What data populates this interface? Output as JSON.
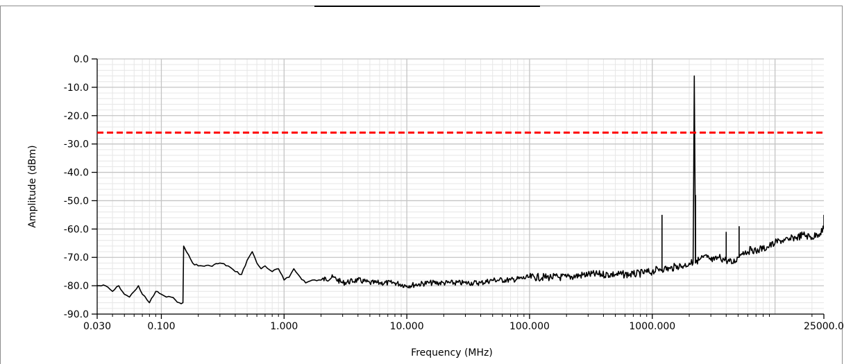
{
  "chart_data": {
    "type": "line",
    "title": "",
    "xlabel": "Frequency (MHz)",
    "ylabel": "Amplitude (dBm)",
    "x_scale": "log",
    "xlim": [
      0.03,
      25000
    ],
    "ylim": [
      -90,
      0
    ],
    "grid": true,
    "x_ticks": [
      0.03,
      0.1,
      1,
      10,
      100,
      1000,
      25000
    ],
    "x_tick_labels": [
      "0.030",
      "0.100",
      "1.000",
      "10.000",
      "100.000",
      "1000.000",
      "25000.0"
    ],
    "y_ticks": [
      0,
      -10,
      -20,
      -30,
      -40,
      -50,
      -60,
      -70,
      -80,
      -90
    ],
    "y_tick_labels": [
      "0.0",
      "-10.0",
      "-20.0",
      "-30.0",
      "-40.0",
      "-50.0",
      "-60.0",
      "-70.0",
      "-80.0",
      "-90.0"
    ],
    "limit_line": {
      "y": -26,
      "color": "#ff0000",
      "style": "dashed"
    },
    "series": [
      {
        "color": "#000000",
        "x": [
          0.03,
          0.035,
          0.04,
          0.045,
          0.05,
          0.055,
          0.06,
          0.065,
          0.07,
          0.08,
          0.09,
          0.1,
          0.11,
          0.12,
          0.13,
          0.14,
          0.15,
          0.152,
          0.16,
          0.18,
          0.2,
          0.25,
          0.3,
          0.35,
          0.4,
          0.45,
          0.5,
          0.55,
          0.6,
          0.65,
          0.7,
          0.8,
          0.9,
          1.0,
          1.1,
          1.2,
          1.3,
          1.5,
          1.7,
          2.0,
          2.5,
          3,
          4,
          5,
          6,
          8,
          10,
          15,
          20,
          30,
          40,
          50,
          70,
          100,
          150,
          200,
          300,
          500,
          700,
          1000,
          1150,
          1200,
          1250,
          1400,
          1600,
          1800,
          2000,
          2150,
          2200,
          2250,
          2300,
          2400,
          2600,
          2800,
          3000,
          3200,
          3500,
          4000,
          4500,
          5000,
          5100,
          5200,
          5500,
          6000,
          6500,
          7000,
          7500,
          8000,
          9000,
          10000,
          11000,
          12000,
          13000,
          14000,
          15000,
          17000,
          20000,
          22000,
          25000
        ],
        "y": [
          -80,
          -80,
          -82,
          -80,
          -83,
          -84,
          -82,
          -80,
          -83,
          -86,
          -82,
          -83,
          -84,
          -84,
          -85,
          -86,
          -86,
          -66,
          -68,
          -72,
          -73,
          -73,
          -72,
          -73,
          -75,
          -76,
          -71,
          -68,
          -72,
          -74,
          -73,
          -75,
          -74,
          -78,
          -77,
          -74,
          -76,
          -79,
          -78,
          -78,
          -77,
          -79,
          -78,
          -79,
          -79,
          -79,
          -80,
          -79,
          -79,
          -79,
          -79,
          -78,
          -78,
          -77,
          -77,
          -77,
          -76,
          -76,
          -76,
          -75,
          -74,
          -74,
          -74,
          -74,
          -73,
          -73,
          -72,
          -72,
          -6,
          -72,
          -71,
          -71,
          -70,
          -70,
          -71,
          -71,
          -70,
          -71,
          -72,
          -70,
          -70,
          -69,
          -68,
          -68,
          -67,
          -68,
          -67,
          -67,
          -66,
          -65,
          -64,
          -64,
          -64,
          -63,
          -63,
          -62,
          -63,
          -62,
          -60
        ]
      }
    ],
    "spurs": [
      {
        "x": 1200,
        "y": -55
      },
      {
        "x": 2200,
        "y": -6
      },
      {
        "x": 2250,
        "y": -48
      },
      {
        "x": 4000,
        "y": -61
      },
      {
        "x": 5100,
        "y": -59
      },
      {
        "x": 25000,
        "y": -55
      }
    ]
  }
}
